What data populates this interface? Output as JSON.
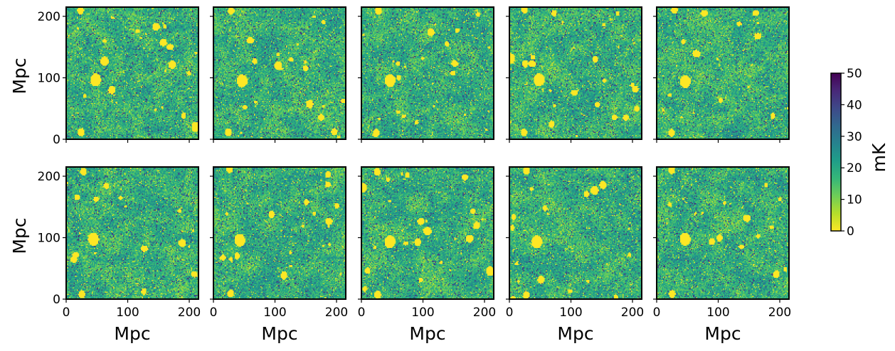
{
  "chart_data": {
    "type": "heatmap",
    "layout": {
      "rows": 2,
      "cols": 5
    },
    "x_axis": {
      "label": "Mpc",
      "range": [
        0,
        215
      ],
      "ticks": [
        0,
        100,
        200
      ]
    },
    "y_axis": {
      "label": "Mpc",
      "range": [
        0,
        215
      ],
      "ticks": [
        0,
        100,
        200
      ]
    },
    "colorbar": {
      "label": "mK",
      "range": [
        0,
        50
      ],
      "ticks": [
        0,
        10,
        20,
        30,
        40,
        50
      ],
      "colormap": "viridis_r",
      "colors": [
        "#fde725",
        "#b5de2b",
        "#6ece58",
        "#35b779",
        "#1f9e89",
        "#26828e",
        "#31688e",
        "#3e4989",
        "#482878",
        "#440154"
      ]
    },
    "panels": [
      {
        "row": 1,
        "col": 1,
        "seed": 11
      },
      {
        "row": 1,
        "col": 2,
        "seed": 23
      },
      {
        "row": 1,
        "col": 3,
        "seed": 37
      },
      {
        "row": 1,
        "col": 4,
        "seed": 41
      },
      {
        "row": 1,
        "col": 5,
        "seed": 53
      },
      {
        "row": 2,
        "col": 1,
        "seed": 67
      },
      {
        "row": 2,
        "col": 2,
        "seed": 71
      },
      {
        "row": 2,
        "col": 3,
        "seed": 83
      },
      {
        "row": 2,
        "col": 4,
        "seed": 97
      },
      {
        "row": 2,
        "col": 5,
        "seed": 101
      }
    ],
    "notable_features": [
      {
        "description": "large ionized (0 mK) bubble",
        "x_mpc": 45,
        "y_mpc": 97,
        "radius_mpc": 8
      },
      {
        "description": "ionized bubble",
        "x_mpc": 25,
        "y_mpc": 10,
        "radius_mpc": 5
      },
      {
        "description": "ionized bubble",
        "x_mpc": 25,
        "y_mpc": 210,
        "radius_mpc": 5
      }
    ]
  }
}
